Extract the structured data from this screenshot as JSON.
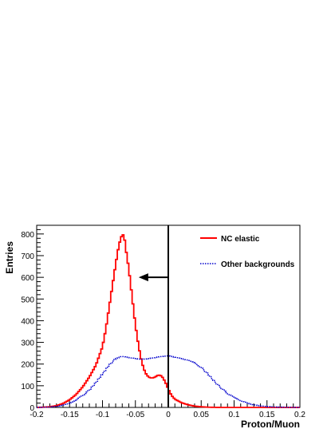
{
  "chart_data": {
    "type": "line",
    "xlabel": "Proton/Muon",
    "ylabel": "Entries",
    "xlim": [
      -0.2,
      0.2
    ],
    "ylim": [
      0,
      840
    ],
    "x_ticks": [
      -0.2,
      -0.15,
      -0.1,
      -0.05,
      0,
      0.05,
      0.1,
      0.15,
      0.2
    ],
    "x_tick_labels": [
      "-0.2",
      "-0.15",
      "-0.1",
      "-0.05",
      "0",
      "0.05",
      "0.1",
      "0.15",
      "0.2"
    ],
    "y_ticks": [
      0,
      100,
      200,
      300,
      400,
      500,
      600,
      700,
      800
    ],
    "y_tick_labels": [
      "0",
      "100",
      "200",
      "300",
      "400",
      "500",
      "600",
      "700",
      "800"
    ],
    "grid": false,
    "legend_placement": "top-right",
    "series": [
      {
        "name": "NC elastic",
        "color": "#ff0000",
        "style": "solid-step",
        "points": [
          [
            -0.2,
            0
          ],
          [
            -0.19,
            1
          ],
          [
            -0.18,
            3
          ],
          [
            -0.17,
            8
          ],
          [
            -0.16,
            18
          ],
          [
            -0.15,
            35
          ],
          [
            -0.14,
            60
          ],
          [
            -0.13,
            95
          ],
          [
            -0.12,
            140
          ],
          [
            -0.11,
            195
          ],
          [
            -0.1,
            280
          ],
          [
            -0.095,
            360
          ],
          [
            -0.09,
            460
          ],
          [
            -0.085,
            560
          ],
          [
            -0.08,
            660
          ],
          [
            -0.075,
            750
          ],
          [
            -0.07,
            800
          ],
          [
            -0.067,
            790
          ],
          [
            -0.065,
            740
          ],
          [
            -0.06,
            640
          ],
          [
            -0.055,
            510
          ],
          [
            -0.05,
            380
          ],
          [
            -0.045,
            280
          ],
          [
            -0.04,
            205
          ],
          [
            -0.035,
            160
          ],
          [
            -0.03,
            140
          ],
          [
            -0.025,
            135
          ],
          [
            -0.02,
            140
          ],
          [
            -0.015,
            150
          ],
          [
            -0.01,
            145
          ],
          [
            -0.005,
            120
          ],
          [
            0,
            85
          ],
          [
            0.005,
            55
          ],
          [
            0.01,
            38
          ],
          [
            0.02,
            22
          ],
          [
            0.03,
            12
          ],
          [
            0.04,
            6
          ],
          [
            0.05,
            3
          ],
          [
            0.06,
            1
          ],
          [
            0.08,
            0
          ],
          [
            0.2,
            0
          ]
        ]
      },
      {
        "name": "Other backgrounds",
        "color": "#0000cc",
        "style": "dotted",
        "points": [
          [
            -0.2,
            0
          ],
          [
            -0.19,
            1
          ],
          [
            -0.18,
            2
          ],
          [
            -0.17,
            5
          ],
          [
            -0.16,
            10
          ],
          [
            -0.15,
            20
          ],
          [
            -0.14,
            35
          ],
          [
            -0.13,
            55
          ],
          [
            -0.12,
            80
          ],
          [
            -0.11,
            115
          ],
          [
            -0.1,
            155
          ],
          [
            -0.09,
            195
          ],
          [
            -0.08,
            225
          ],
          [
            -0.07,
            235
          ],
          [
            -0.06,
            230
          ],
          [
            -0.05,
            225
          ],
          [
            -0.04,
            222
          ],
          [
            -0.03,
            225
          ],
          [
            -0.02,
            230
          ],
          [
            -0.01,
            235
          ],
          [
            0,
            238
          ],
          [
            0.01,
            232
          ],
          [
            0.02,
            225
          ],
          [
            0.03,
            218
          ],
          [
            0.04,
            205
          ],
          [
            0.05,
            185
          ],
          [
            0.06,
            155
          ],
          [
            0.07,
            120
          ],
          [
            0.08,
            90
          ],
          [
            0.09,
            65
          ],
          [
            0.1,
            45
          ],
          [
            0.11,
            30
          ],
          [
            0.12,
            20
          ],
          [
            0.13,
            12
          ],
          [
            0.14,
            7
          ],
          [
            0.15,
            4
          ],
          [
            0.16,
            2
          ],
          [
            0.18,
            1
          ],
          [
            0.2,
            0
          ]
        ]
      }
    ],
    "annotations": [
      {
        "type": "vertical-line",
        "x": 0
      },
      {
        "type": "arrow",
        "from": [
          0,
          600
        ],
        "to": [
          -0.045,
          600
        ]
      }
    ]
  }
}
